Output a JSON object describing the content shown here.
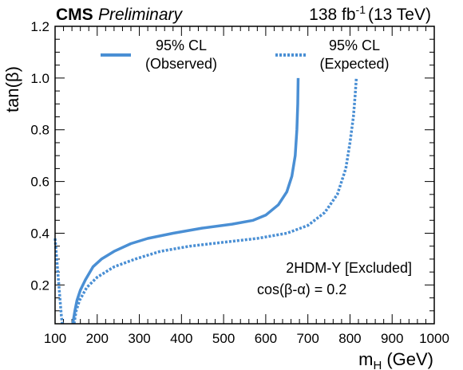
{
  "header": {
    "experiment": "CMS",
    "status": "Preliminary",
    "lumi_value": "138 fb",
    "lumi_exp": "-1",
    "energy": "(13 TeV)"
  },
  "annotation": {
    "line1": "2HDM-Y [Excluded]",
    "line2": "cos(β-α) = 0.2"
  },
  "chart_data": {
    "type": "line",
    "xlabel": "m",
    "xlabel_sub": "H",
    "xlabel_unit": "(GeV)",
    "ylabel": "tan(β)",
    "xlim": [
      100,
      1000
    ],
    "ylim": [
      0.05,
      1.2
    ],
    "x_ticks": [
      100,
      200,
      300,
      400,
      500,
      600,
      700,
      800,
      900,
      1000
    ],
    "x_tick_labels": [
      "100",
      "200",
      "300",
      "400",
      "500",
      "600",
      "700",
      "800",
      "900",
      "1000"
    ],
    "y_ticks": [
      0.2,
      0.4,
      0.6,
      0.8,
      1.0,
      1.2
    ],
    "y_tick_labels": [
      "0.2",
      "0.4",
      "0.6",
      "0.8",
      "1.0",
      "1.2"
    ],
    "color": "#4a8fd4",
    "legend_position": "top",
    "series": [
      {
        "name": "95% CL",
        "name_line2": "(Observed)",
        "style": "solid",
        "points": [
          [
            142,
            0.05
          ],
          [
            147,
            0.1
          ],
          [
            152,
            0.14
          ],
          [
            160,
            0.18
          ],
          [
            172,
            0.22
          ],
          [
            190,
            0.27
          ],
          [
            210,
            0.3
          ],
          [
            240,
            0.33
          ],
          [
            280,
            0.36
          ],
          [
            320,
            0.38
          ],
          [
            380,
            0.4
          ],
          [
            450,
            0.42
          ],
          [
            520,
            0.435
          ],
          [
            570,
            0.45
          ],
          [
            600,
            0.47
          ],
          [
            630,
            0.51
          ],
          [
            650,
            0.56
          ],
          [
            662,
            0.62
          ],
          [
            670,
            0.7
          ],
          [
            674,
            0.8
          ],
          [
            676,
            0.9
          ],
          [
            677,
            1.0
          ]
        ]
      },
      {
        "name": "95% CL",
        "name_line2": "(Expected)",
        "style": "dotted",
        "points": [
          [
            145,
            0.05
          ],
          [
            150,
            0.1
          ],
          [
            158,
            0.14
          ],
          [
            175,
            0.19
          ],
          [
            200,
            0.23
          ],
          [
            240,
            0.27
          ],
          [
            290,
            0.3
          ],
          [
            350,
            0.33
          ],
          [
            420,
            0.35
          ],
          [
            500,
            0.365
          ],
          [
            580,
            0.38
          ],
          [
            650,
            0.4
          ],
          [
            700,
            0.43
          ],
          [
            740,
            0.48
          ],
          [
            770,
            0.55
          ],
          [
            790,
            0.65
          ],
          [
            800,
            0.75
          ],
          [
            808,
            0.85
          ],
          [
            812,
            0.93
          ],
          [
            815,
            1.0
          ]
        ]
      },
      {
        "name": "",
        "style": "dotted",
        "points": [
          [
            100,
            0.38
          ],
          [
            104,
            0.3
          ],
          [
            108,
            0.22
          ],
          [
            112,
            0.14
          ],
          [
            115,
            0.08
          ],
          [
            117,
            0.05
          ]
        ]
      }
    ]
  }
}
